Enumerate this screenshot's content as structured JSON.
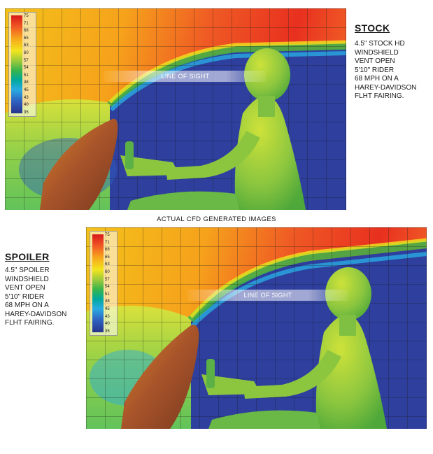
{
  "legend": {
    "values": [
      "75",
      "71",
      "68",
      "65",
      "63",
      "60",
      "57",
      "54",
      "51",
      "48",
      "45",
      "43",
      "40",
      "35"
    ]
  },
  "stock": {
    "title": "STOCK",
    "lines": [
      "4.5\" STOCK HD",
      "WINDSHIELD",
      "VENT OPEN",
      "5'10\" RIDER",
      "68 MPH ON A",
      "HAREY-DAVIDSON",
      "FLHT FAIRING."
    ],
    "line_of_sight": "LINE OF SIGHT"
  },
  "caption": "ACTUAL CFD GENERATED IMAGES",
  "spoiler": {
    "title": "SPOILER",
    "lines": [
      "4.5\" SPOILER",
      "WINDSHIELD",
      "VENT OPEN",
      "5'10\" RIDER",
      "68 MPH ON A",
      "HAREY-DAVIDSON",
      "FLHT FAIRING."
    ],
    "line_of_sight": "LINE OF SIGHT"
  },
  "colors": {
    "hot": "#d7191c",
    "warm": "#f2e51d",
    "mid": "#39b54a",
    "cold": "#2e3f9e"
  }
}
